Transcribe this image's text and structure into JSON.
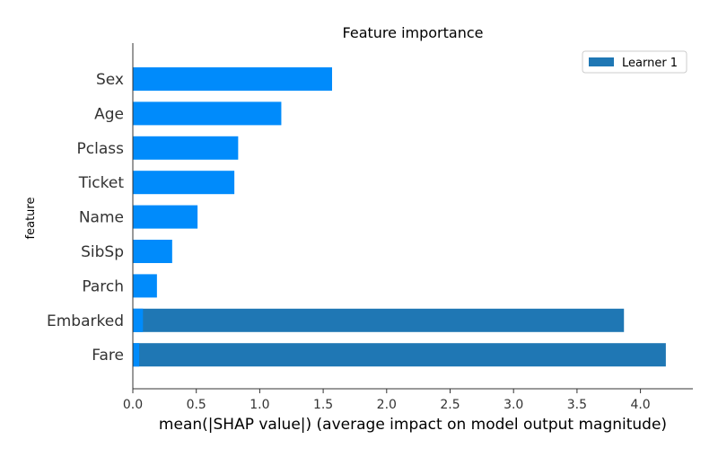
{
  "chart_data": {
    "type": "bar",
    "orientation": "horizontal",
    "title": "Feature importance",
    "xlabel": "mean(|SHAP value|) (average impact on model output magnitude)",
    "ylabel": "feature",
    "xlim": [
      0,
      4.4
    ],
    "xticks": [
      "0.0",
      "0.5",
      "1.0",
      "1.5",
      "2.0",
      "2.5",
      "3.0",
      "3.5",
      "4.0"
    ],
    "categories": [
      "Sex",
      "Age",
      "Pclass",
      "Ticket",
      "Name",
      "SibSp",
      "Parch",
      "Embarked",
      "Fare"
    ],
    "series": [
      {
        "name": "Learner 1",
        "color": "#1f77b4",
        "values": [
          0,
          0,
          0,
          0,
          0,
          0,
          0,
          3.87,
          4.2
        ]
      }
    ],
    "overlay": {
      "color": "#008bfb",
      "values": [
        1.57,
        1.17,
        0.83,
        0.8,
        0.51,
        0.31,
        0.19,
        0.08,
        0.05
      ]
    },
    "legend": {
      "position": "top-right",
      "entries": [
        "Learner 1"
      ]
    },
    "grid": false
  }
}
